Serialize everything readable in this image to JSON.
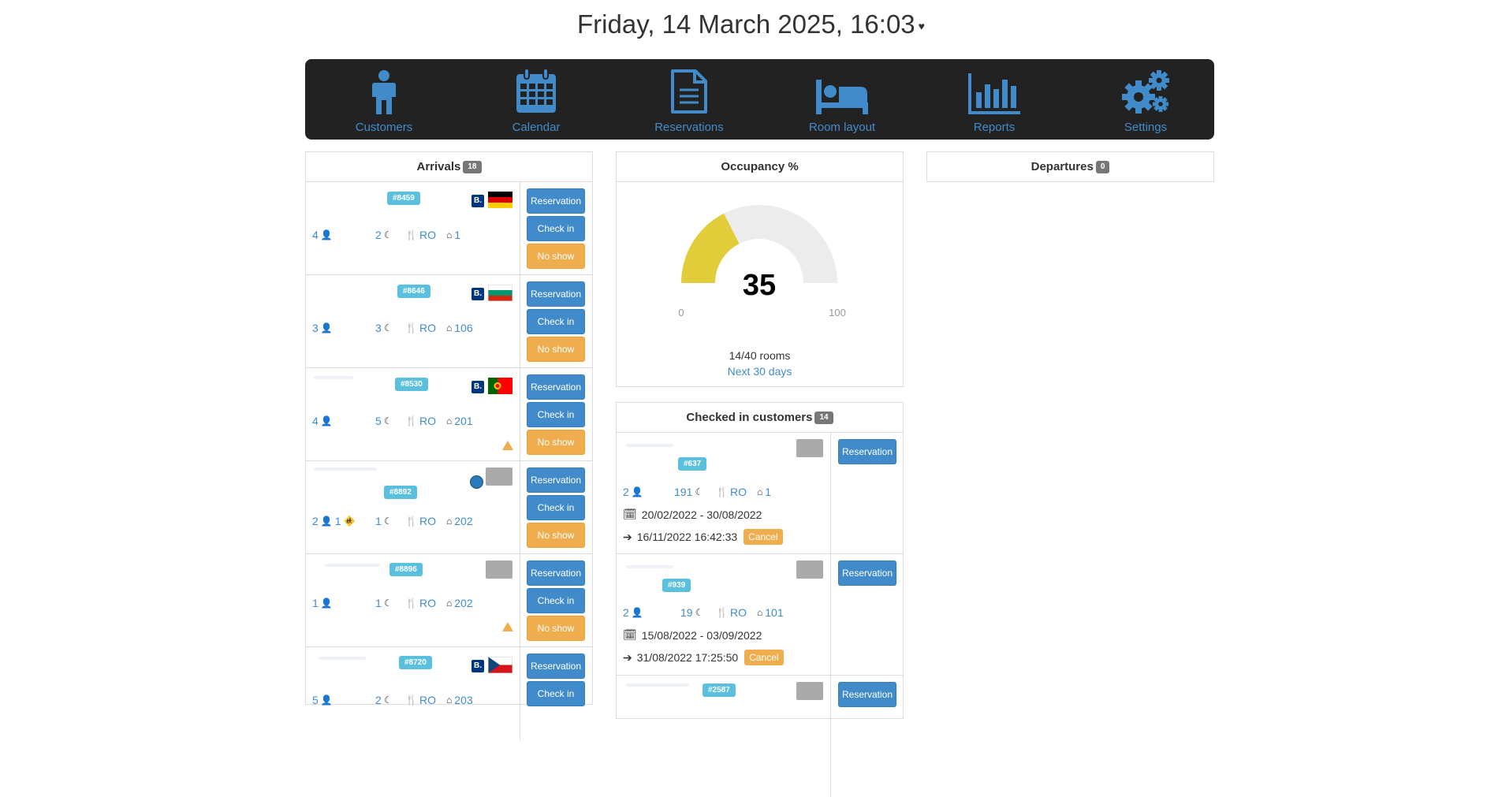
{
  "header": {
    "datetime": "Friday, 14 March 2025, 16:03",
    "caret": "♥"
  },
  "nav": [
    {
      "label": "Customers",
      "icon": "person-icon"
    },
    {
      "label": "Calendar",
      "icon": "calendar-icon"
    },
    {
      "label": "Reservations",
      "icon": "document-icon"
    },
    {
      "label": "Room layout",
      "icon": "bed-icon"
    },
    {
      "label": "Reports",
      "icon": "bar-chart-icon"
    },
    {
      "label": "Settings",
      "icon": "cogs-icon"
    }
  ],
  "arrivals": {
    "title": "Arrivals",
    "count": "18",
    "buttons": {
      "reservation": "Reservation",
      "checkin": "Check in",
      "noshow": "No show"
    },
    "items": [
      {
        "id": "#8459",
        "guests": "4",
        "nights": "2",
        "board": "RO",
        "room": "1",
        "source": "B.",
        "flag": "germany",
        "warning": false
      },
      {
        "id": "#8646",
        "guests": "3",
        "nights": "3",
        "board": "RO",
        "room": "106",
        "source": "B.",
        "flag": "bulgaria",
        "warning": false
      },
      {
        "id": "#8530",
        "guests": "4",
        "nights": "5",
        "board": "RO",
        "room": "201",
        "source": "B.",
        "flag": "portugal",
        "warning": true
      },
      {
        "id": "#8892",
        "guests": "2",
        "children": "1",
        "nights": "1",
        "board": "RO",
        "room": "202",
        "source": "globe",
        "flag": "placeholder",
        "warning": false
      },
      {
        "id": "#8896",
        "guests": "1",
        "nights": "1",
        "board": "RO",
        "room": "202",
        "source": "",
        "flag": "placeholder",
        "warning": true
      },
      {
        "id": "#8720",
        "guests": "5",
        "nights": "2",
        "board": "RO",
        "room": "203",
        "source": "B.",
        "flag": "czech",
        "warning": false
      }
    ]
  },
  "occupancy": {
    "title": "Occupancy %",
    "value": 35,
    "min": "0",
    "max": "100",
    "rooms": "14/40 rooms",
    "period": "Next 30 days",
    "fill_color": "#e1cd3a",
    "track_color": "#ececec"
  },
  "checked_in": {
    "title": "Checked in customers",
    "count": "14",
    "reservation_label": "Reservation",
    "cancel_label": "Cancel",
    "items": [
      {
        "id": "#637",
        "guests": "2",
        "nights": "191",
        "board": "RO",
        "room": "1",
        "dates": "20/02/2022 - 30/08/2022",
        "checkin": "16/11/2022 16:42:33"
      },
      {
        "id": "#939",
        "guests": "2",
        "nights": "19",
        "board": "RO",
        "room": "101",
        "dates": "15/08/2022 - 03/09/2022",
        "checkin": "31/08/2022 17:25:50"
      },
      {
        "id": "#2587"
      }
    ]
  },
  "departures": {
    "title": "Departures",
    "count": "0"
  }
}
